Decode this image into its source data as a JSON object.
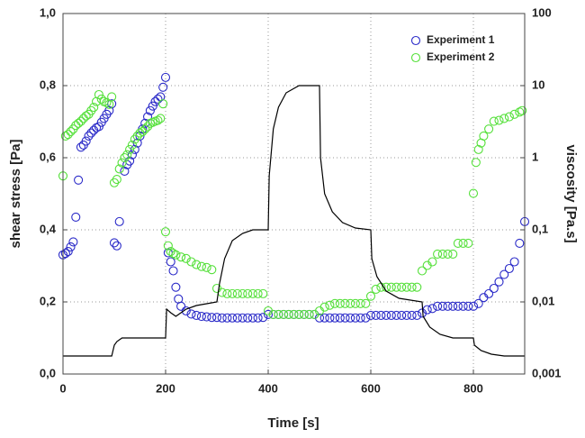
{
  "chart_data": {
    "type": "scatter",
    "xlabel": "Time [s]",
    "ylabel": "shear stress [Pa]",
    "y2label": "viscosity [Pa.s]",
    "xlim": [
      0,
      900
    ],
    "xticks": [
      0,
      200,
      400,
      600,
      800
    ],
    "ylim": [
      0,
      1
    ],
    "yticks": [
      {
        "value": 0,
        "label": "0,0"
      },
      {
        "value": 0.2,
        "label": "0,2"
      },
      {
        "value": 0.4,
        "label": "0,4"
      },
      {
        "value": 0.6,
        "label": "0,6"
      },
      {
        "value": 0.8,
        "label": "0,8"
      },
      {
        "value": 1,
        "label": "1,0"
      }
    ],
    "y2lim": [
      0.001,
      100
    ],
    "y2scale": "log",
    "y2ticks": [
      {
        "value": 0.001,
        "label": "0,001"
      },
      {
        "value": 0.01,
        "label": "0,01"
      },
      {
        "value": 0.1,
        "label": "0,1"
      },
      1,
      10,
      100
    ],
    "grid": true,
    "legend": "upper right",
    "series": [
      {
        "name": "Experiment 1",
        "color": "#2a2ac8",
        "axis": "y2",
        "x": [
          0,
          5,
          10,
          15,
          20,
          25,
          30,
          35,
          40,
          45,
          50,
          55,
          60,
          65,
          70,
          75,
          80,
          85,
          90,
          95,
          100,
          105,
          110,
          120,
          125,
          130,
          135,
          140,
          145,
          150,
          155,
          160,
          165,
          170,
          175,
          180,
          185,
          190,
          195,
          200,
          205,
          210,
          215,
          220,
          225,
          230,
          240,
          250,
          260,
          270,
          280,
          290,
          300,
          310,
          320,
          330,
          340,
          350,
          360,
          370,
          380,
          390,
          400,
          410,
          420,
          430,
          440,
          450,
          460,
          470,
          480,
          490,
          500,
          510,
          520,
          530,
          540,
          550,
          560,
          570,
          580,
          590,
          600,
          610,
          620,
          630,
          640,
          650,
          660,
          670,
          680,
          690,
          700,
          710,
          720,
          730,
          740,
          750,
          760,
          770,
          780,
          790,
          800,
          810,
          820,
          830,
          840,
          850,
          860,
          870,
          880,
          890,
          900
        ],
        "values": [
          0.045,
          0.047,
          0.05,
          0.058,
          0.068,
          0.15,
          0.49,
          1.4,
          1.5,
          1.7,
          2.0,
          2.2,
          2.4,
          2.6,
          2.7,
          3.1,
          3.5,
          4.0,
          4.5,
          5.6,
          0.066,
          0.06,
          0.13,
          0.65,
          0.8,
          0.9,
          1.1,
          1.3,
          1.6,
          2.0,
          2.5,
          3.0,
          3.7,
          4.5,
          5.2,
          6.0,
          6.5,
          7.0,
          9.5,
          13,
          0.048,
          0.036,
          0.027,
          0.016,
          0.011,
          0.0087,
          0.0075,
          0.0068,
          0.0065,
          0.0063,
          0.0062,
          0.0061,
          0.0061,
          0.006,
          0.006,
          0.006,
          0.006,
          0.006,
          0.006,
          0.006,
          0.006,
          0.0061,
          0.0067,
          0.0067,
          0.0067,
          0.0067,
          0.0067,
          0.0067,
          0.0067,
          0.0067,
          0.0067,
          0.0067,
          0.006,
          0.006,
          0.006,
          0.006,
          0.006,
          0.006,
          0.006,
          0.006,
          0.006,
          0.006,
          0.0065,
          0.0065,
          0.0065,
          0.0065,
          0.0065,
          0.0065,
          0.0065,
          0.0065,
          0.0065,
          0.0065,
          0.007,
          0.0078,
          0.0081,
          0.0087,
          0.0087,
          0.0087,
          0.0087,
          0.0087,
          0.0087,
          0.0087,
          0.0087,
          0.0095,
          0.0115,
          0.013,
          0.0154,
          0.019,
          0.024,
          0.029,
          0.036,
          0.065,
          0.13
        ]
      },
      {
        "name": "Experiment 2",
        "color": "#55e03a",
        "axis": "y2",
        "x": [
          0,
          5,
          10,
          15,
          20,
          25,
          30,
          35,
          40,
          45,
          50,
          55,
          60,
          65,
          70,
          75,
          80,
          85,
          90,
          95,
          100,
          105,
          110,
          115,
          120,
          125,
          130,
          135,
          140,
          145,
          150,
          155,
          160,
          165,
          170,
          175,
          180,
          185,
          190,
          195,
          200,
          205,
          210,
          215,
          220,
          230,
          240,
          250,
          260,
          270,
          280,
          290,
          300,
          310,
          320,
          330,
          340,
          350,
          360,
          370,
          380,
          390,
          400,
          410,
          420,
          430,
          440,
          450,
          460,
          470,
          480,
          490,
          500,
          510,
          520,
          530,
          540,
          550,
          560,
          570,
          580,
          590,
          600,
          610,
          620,
          630,
          640,
          650,
          660,
          670,
          680,
          690,
          700,
          710,
          720,
          730,
          740,
          750,
          760,
          770,
          780,
          790,
          800,
          805,
          810,
          815,
          820,
          830,
          840,
          850,
          860,
          870,
          880,
          890,
          895
        ],
        "values": [
          0.56,
          2.0,
          2.1,
          2.3,
          2.5,
          2.8,
          3.0,
          3.2,
          3.5,
          3.8,
          4.0,
          4.5,
          5.0,
          6.0,
          7.5,
          6.5,
          6.0,
          5.8,
          5.5,
          7.0,
          0.45,
          0.5,
          0.7,
          0.85,
          1.0,
          1.1,
          1.3,
          1.5,
          1.8,
          2.0,
          2.2,
          2.3,
          2.5,
          2.7,
          3.0,
          3.1,
          3.2,
          3.3,
          3.5,
          5.6,
          0.094,
          0.06,
          0.05,
          0.047,
          0.045,
          0.042,
          0.04,
          0.036,
          0.033,
          0.031,
          0.03,
          0.028,
          0.0154,
          0.0135,
          0.013,
          0.013,
          0.013,
          0.013,
          0.013,
          0.013,
          0.013,
          0.013,
          0.0075,
          0.0067,
          0.0067,
          0.0067,
          0.0067,
          0.0067,
          0.0067,
          0.0067,
          0.0067,
          0.0067,
          0.0075,
          0.0085,
          0.009,
          0.0095,
          0.0095,
          0.0095,
          0.0095,
          0.0095,
          0.0095,
          0.0095,
          0.012,
          0.015,
          0.016,
          0.016,
          0.016,
          0.016,
          0.016,
          0.016,
          0.016,
          0.016,
          0.027,
          0.032,
          0.036,
          0.046,
          0.046,
          0.046,
          0.046,
          0.065,
          0.065,
          0.065,
          0.32,
          0.86,
          1.3,
          1.6,
          2.0,
          2.5,
          3.2,
          3.3,
          3.5,
          3.7,
          4.0,
          4.3,
          4.5
        ]
      },
      {
        "type": "line",
        "color": "#000000",
        "axis": "y",
        "x": [
          0,
          95,
          100,
          105,
          115,
          200,
          202,
          210,
          220,
          240,
          260,
          280,
          300,
          305,
          315,
          330,
          350,
          370,
          400,
          402,
          410,
          420,
          435,
          460,
          500,
          502,
          510,
          525,
          545,
          570,
          600,
          602,
          612,
          630,
          655,
          700,
          702,
          715,
          735,
          760,
          800,
          802,
          815,
          835,
          860,
          900
        ],
        "values": [
          0.05,
          0.05,
          0.08,
          0.09,
          0.1,
          0.1,
          0.18,
          0.17,
          0.16,
          0.18,
          0.19,
          0.195,
          0.2,
          0.25,
          0.32,
          0.37,
          0.39,
          0.4,
          0.4,
          0.55,
          0.68,
          0.74,
          0.78,
          0.8,
          0.8,
          0.6,
          0.5,
          0.45,
          0.42,
          0.405,
          0.4,
          0.32,
          0.27,
          0.23,
          0.21,
          0.2,
          0.16,
          0.13,
          0.11,
          0.1,
          0.1,
          0.08,
          0.065,
          0.055,
          0.05,
          0.05
        ]
      }
    ]
  }
}
